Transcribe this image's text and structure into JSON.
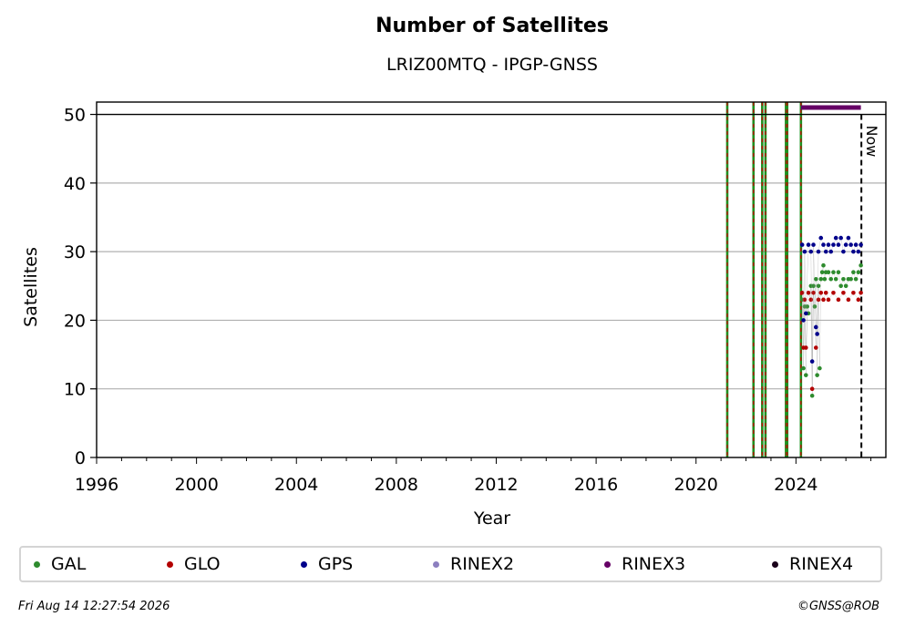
{
  "chart_data": {
    "type": "scatter",
    "title": "Number of Satellites",
    "subtitle": "LRIZ00MTQ - IPGP-GNSS",
    "xlabel": "Year",
    "ylabel": "Satellites",
    "xlim": [
      1996,
      2027.6
    ],
    "ylim": [
      0,
      51.8
    ],
    "x_ticks": [
      "1996",
      "2000",
      "2004",
      "2008",
      "2012",
      "2016",
      "2020",
      "2024"
    ],
    "y_ticks": [
      "0",
      "10",
      "20",
      "30",
      "40",
      "50"
    ],
    "grid": "horizontal",
    "reference_line_y": 50,
    "now_label": "Now",
    "now_x": 2026.62,
    "event_lines_x": [
      2021.25,
      2022.3,
      2022.65,
      2022.78,
      2023.6,
      2023.65,
      2024.2
    ],
    "series": [
      {
        "name": "GAL",
        "color": "#2e8b2e",
        "x": [
          2024.25,
          2024.3,
          2024.35,
          2024.4,
          2024.45,
          2024.5,
          2024.6,
          2024.65,
          2024.7,
          2024.75,
          2024.8,
          2024.85,
          2024.9,
          2024.95,
          2025.0,
          2025.05,
          2025.1,
          2025.15,
          2025.2,
          2025.3,
          2025.4,
          2025.5,
          2025.6,
          2025.7,
          2025.8,
          2025.9,
          2026.0,
          2026.1,
          2026.2,
          2026.3,
          2026.4,
          2026.5,
          2026.6
        ],
        "y": [
          23,
          13,
          22,
          12,
          22,
          21,
          25,
          9,
          25,
          22,
          26,
          12,
          25,
          13,
          26,
          27,
          28,
          26,
          27,
          27,
          26,
          27,
          26,
          27,
          25,
          26,
          25,
          26,
          26,
          27,
          26,
          27,
          28
        ]
      },
      {
        "name": "GLO",
        "color": "#b30000",
        "x": [
          2024.25,
          2024.3,
          2024.35,
          2024.4,
          2024.5,
          2024.6,
          2024.65,
          2024.7,
          2024.8,
          2024.9,
          2025.0,
          2025.1,
          2025.2,
          2025.3,
          2025.5,
          2025.7,
          2025.9,
          2026.1,
          2026.3,
          2026.5,
          2026.6
        ],
        "y": [
          24,
          16,
          23,
          16,
          24,
          23,
          10,
          24,
          16,
          23,
          24,
          23,
          24,
          23,
          24,
          23,
          24,
          23,
          24,
          23,
          24
        ]
      },
      {
        "name": "GPS",
        "color": "#00008b",
        "x": [
          2024.25,
          2024.3,
          2024.35,
          2024.4,
          2024.5,
          2024.6,
          2024.65,
          2024.7,
          2024.8,
          2024.85,
          2024.9,
          2025.0,
          2025.1,
          2025.2,
          2025.3,
          2025.4,
          2025.5,
          2025.6,
          2025.7,
          2025.8,
          2025.9,
          2026.0,
          2026.1,
          2026.2,
          2026.3,
          2026.4,
          2026.5,
          2026.6
        ],
        "y": [
          31,
          20,
          30,
          21,
          31,
          30,
          14,
          31,
          19,
          18,
          30,
          32,
          31,
          30,
          31,
          30,
          31,
          32,
          31,
          32,
          30,
          31,
          32,
          31,
          30,
          31,
          30,
          31
        ]
      },
      {
        "name": "RINEX2",
        "color": "#8c7fbf",
        "x": [],
        "y": []
      },
      {
        "name": "RINEX3",
        "color": "#660066",
        "x": [
          2024.2,
          2026.6
        ],
        "y": [
          51,
          51
        ]
      },
      {
        "name": "RINEX4",
        "color": "#1a001a",
        "x": [],
        "y": []
      }
    ]
  },
  "legend": {
    "items": [
      {
        "label": "GAL",
        "color": "#2e8b2e"
      },
      {
        "label": "GLO",
        "color": "#b30000"
      },
      {
        "label": "GPS",
        "color": "#00008b"
      },
      {
        "label": "RINEX2",
        "color": "#8c7fbf"
      },
      {
        "label": "RINEX3",
        "color": "#660066"
      },
      {
        "label": "RINEX4",
        "color": "#1a001a"
      }
    ]
  },
  "footer": {
    "date": "Fri Aug 14 12:27:54 2026",
    "credit": "©GNSS@ROB"
  }
}
